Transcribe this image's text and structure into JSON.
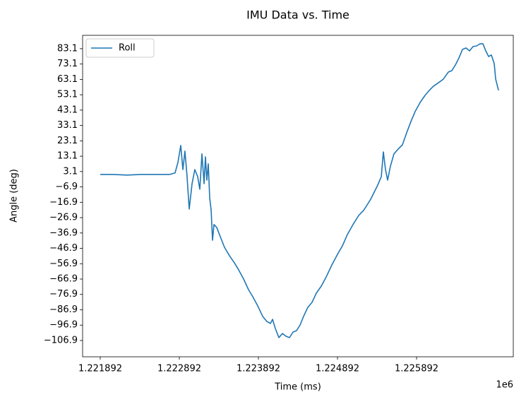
{
  "chart_data": {
    "type": "line",
    "title": "IMU Data vs. Time",
    "xlabel": "Time (ms)",
    "ylabel": "Angle (deg)",
    "x_offset_label": "1e6",
    "x": [
      1.221892,
      1.222053,
      1.222231,
      1.22241,
      1.222588,
      1.222767,
      1.222838,
      1.222874,
      1.22291,
      1.222937,
      1.222963,
      1.22299,
      1.223017,
      1.223053,
      1.223088,
      1.223124,
      1.223151,
      1.223178,
      1.223205,
      1.223222,
      1.22324,
      1.223258,
      1.223276,
      1.223294,
      1.223312,
      1.22333,
      1.223365,
      1.22341,
      1.223463,
      1.223526,
      1.223588,
      1.223642,
      1.223705,
      1.223767,
      1.223821,
      1.223883,
      1.223946,
      1.223999,
      1.224044,
      1.224071,
      1.224106,
      1.224151,
      1.224196,
      1.22424,
      1.224285,
      1.22433,
      1.224374,
      1.224419,
      1.224463,
      1.224517,
      1.224571,
      1.224624,
      1.224687,
      1.224749,
      1.224821,
      1.224892,
      1.224955,
      1.225017,
      1.225088,
      1.22516,
      1.225222,
      1.225267,
      1.225312,
      1.225356,
      1.225401,
      1.225446,
      1.225472,
      1.225499,
      1.225526,
      1.225562,
      1.225606,
      1.225651,
      1.225713,
      1.225767,
      1.225821,
      1.225874,
      1.225937,
      1.225999,
      1.226053,
      1.226106,
      1.22616,
      1.226231,
      1.226294,
      1.226338,
      1.226383,
      1.226428,
      1.226472,
      1.226517,
      1.226562,
      1.226606,
      1.226651,
      1.226696,
      1.226731,
      1.226767,
      1.226803,
      1.226838,
      1.226874,
      1.226892,
      1.226928
    ],
    "series": [
      {
        "name": "Roll",
        "color": "#1f77b4",
        "values": [
          1.2,
          1.2,
          0.8,
          1.2,
          1.2,
          1.2,
          2.2,
          9.0,
          20.1,
          4.4,
          16.4,
          -0.2,
          -21.3,
          -4.8,
          4.4,
          -0.2,
          -8.4,
          14.6,
          -4.8,
          12.7,
          -2.5,
          8.1,
          -14.0,
          -21.8,
          -41.6,
          -31.4,
          -33.3,
          -39.3,
          -46.2,
          -51.7,
          -56.3,
          -60.9,
          -66.9,
          -73.8,
          -78.4,
          -84.3,
          -91.2,
          -94.5,
          -95.8,
          -93.1,
          -99.1,
          -105.0,
          -102.3,
          -104.1,
          -105.0,
          -101.4,
          -100.5,
          -96.8,
          -91.2,
          -85.3,
          -82.0,
          -76.1,
          -71.5,
          -65.5,
          -57.7,
          -50.8,
          -45.2,
          -37.9,
          -31.4,
          -25.5,
          -22.2,
          -18.6,
          -14.9,
          -10.3,
          -5.7,
          -0.2,
          15.9,
          4.4,
          -2.5,
          6.7,
          14.6,
          17.3,
          20.5,
          28.4,
          35.7,
          42.2,
          48.1,
          52.7,
          56.0,
          58.7,
          60.6,
          63.3,
          67.9,
          68.8,
          72.5,
          77.1,
          82.6,
          83.6,
          81.7,
          84.5,
          84.9,
          86.3,
          86.3,
          81.7,
          78.0,
          79.0,
          73.4,
          63.3,
          56.0
        ]
      }
    ],
    "xlim": [
      1.221669,
      1.227115
    ],
    "xticks": [
      1.221892,
      1.222892,
      1.223892,
      1.224892,
      1.225892
    ],
    "ylim": [
      -117.5,
      91.8
    ],
    "yticks": [
      83.1,
      73.1,
      63.1,
      53.1,
      43.1,
      33.1,
      23.1,
      13.1,
      3.1,
      {
        "value": -6.9,
        "label": "−6.9"
      },
      {
        "value": -16.9,
        "label": "−16.9"
      },
      {
        "value": -26.9,
        "label": "−26.9"
      },
      {
        "value": -36.9,
        "label": "−36.9"
      },
      {
        "value": -46.9,
        "label": "−46.9"
      },
      {
        "value": -56.9,
        "label": "−56.9"
      },
      {
        "value": -66.9,
        "label": "−66.9"
      },
      {
        "value": -76.9,
        "label": "−76.9"
      },
      {
        "value": -86.9,
        "label": "−86.9"
      },
      {
        "value": -96.9,
        "label": "−96.9"
      },
      {
        "value": -106.9,
        "label": "−106.9"
      }
    ],
    "grid": false,
    "legend": "upper left"
  }
}
